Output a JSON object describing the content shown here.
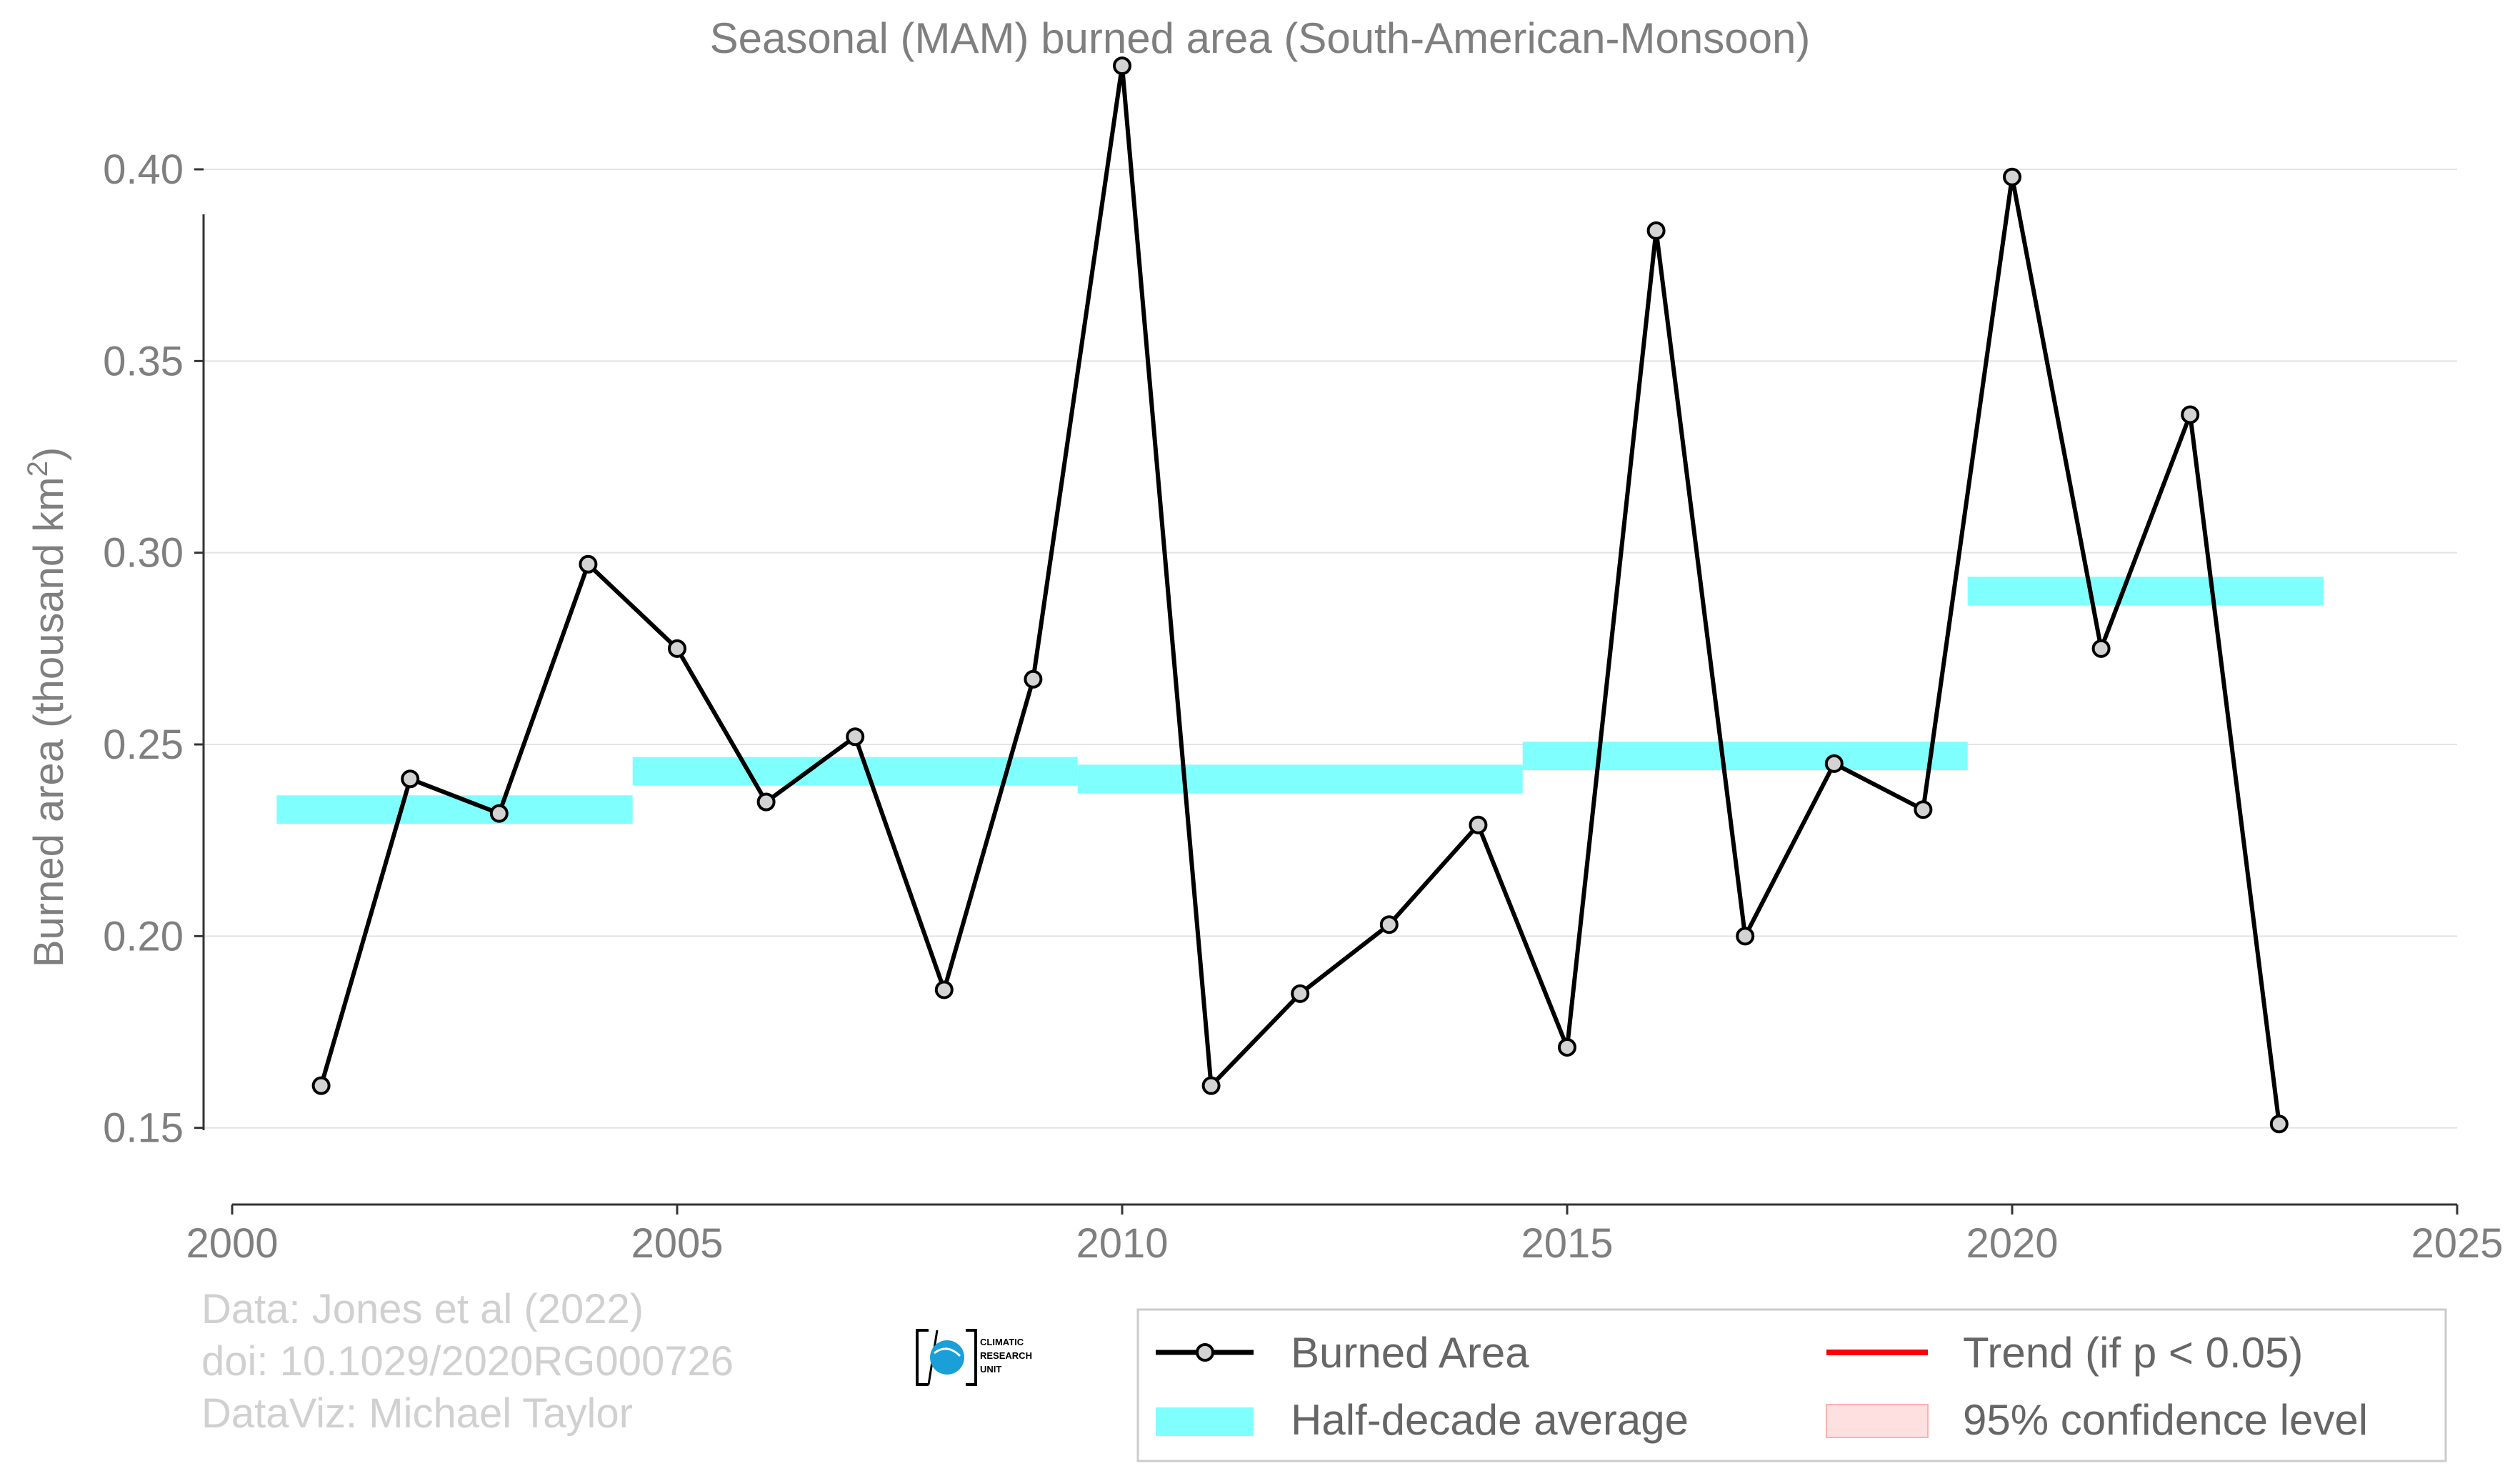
{
  "chart_data": {
    "type": "line",
    "title": "Seasonal (MAM) burned area (South-American-Monsoon)",
    "ylabel": "Burned area (thousand km",
    "ylabel_sup": "2",
    "ylabel_close": ")",
    "xlabel": "",
    "xlim": [
      2000,
      2025
    ],
    "ylim": [
      0.13,
      0.43
    ],
    "x_ticks": [
      "2000",
      "2005",
      "2010",
      "2015",
      "2020",
      "2025"
    ],
    "y_ticks": [
      "0.15",
      "0.20",
      "0.25",
      "0.30",
      "0.35",
      "0.40"
    ],
    "grid": "horizontal",
    "legend_position": "bottom-right",
    "series": [
      {
        "name": "Burned Area",
        "color": "#000000",
        "x": [
          2001,
          2002,
          2003,
          2004,
          2005,
          2006,
          2007,
          2008,
          2009,
          2010,
          2011,
          2012,
          2013,
          2014,
          2015,
          2016,
          2017,
          2018,
          2019,
          2020,
          2021,
          2022,
          2023
        ],
        "values": [
          0.161,
          0.241,
          0.232,
          0.297,
          0.275,
          0.235,
          0.252,
          0.186,
          0.267,
          0.427,
          0.161,
          0.185,
          0.203,
          0.229,
          0.171,
          0.384,
          0.2,
          0.245,
          0.233,
          0.398,
          0.275,
          0.336,
          0.151
        ]
      }
    ],
    "half_decade_average": {
      "name": "Half-decade average",
      "color": "#80ffff",
      "segments": [
        {
          "x_start": 2000.5,
          "x_end": 2004.5,
          "value": 0.233
        },
        {
          "x_start": 2004.5,
          "x_end": 2009.5,
          "value": 0.243
        },
        {
          "x_start": 2009.5,
          "x_end": 2014.5,
          "value": 0.241
        },
        {
          "x_start": 2014.5,
          "x_end": 2019.5,
          "value": 0.247
        },
        {
          "x_start": 2019.5,
          "x_end": 2023.5,
          "value": 0.29
        }
      ]
    },
    "legend": [
      {
        "label": "Burned Area",
        "kind": "line-marker",
        "color": "#000000"
      },
      {
        "label": "Trend (if p < 0.05)",
        "kind": "line",
        "color": "#ff0000"
      },
      {
        "label": "Half-decade average",
        "kind": "patch",
        "color": "#80ffff"
      },
      {
        "label": "95% confidence level",
        "kind": "patch",
        "color": "#ffe0e0"
      }
    ]
  },
  "credits": {
    "line1": "Data: Jones et al (2022)",
    "line2": "doi: 10.1029/2020RG000726",
    "line3": "DataViz: Michael Taylor"
  },
  "logo": {
    "line1": "CLIMATIC",
    "line2": "RESEARCH",
    "line3": "UNIT"
  }
}
